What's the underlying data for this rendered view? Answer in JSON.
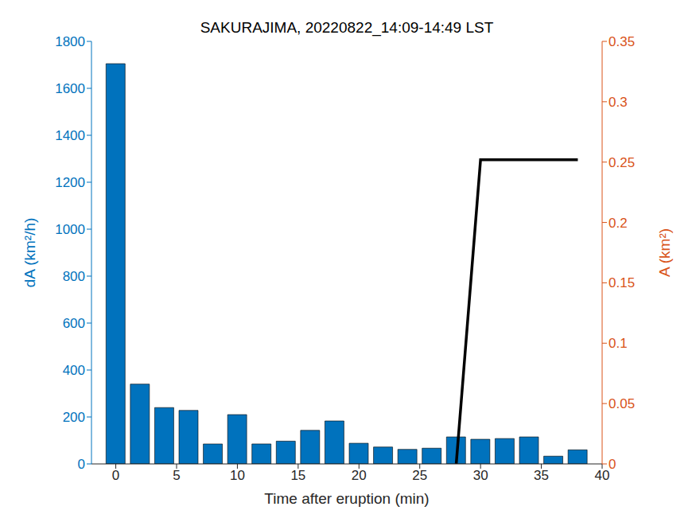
{
  "chart_data": {
    "type": "bar",
    "title": "SAKURAJIMA, 20220822_14:09-14:49 LST",
    "xlabel": "Time after eruption (min)",
    "ylabel": "dA (km²/h)",
    "y2label": "A (km²)",
    "xlim": [
      -2,
      40
    ],
    "xticks": [
      0,
      5,
      10,
      15,
      20,
      25,
      30,
      35,
      40
    ],
    "ylim": [
      0,
      1800
    ],
    "yticks": [
      0,
      200,
      400,
      600,
      800,
      1000,
      1200,
      1400,
      1600,
      1800
    ],
    "y2lim": [
      0,
      0.35
    ],
    "y2ticks": [
      0,
      0.05,
      0.1,
      0.15,
      0.2,
      0.25,
      0.3,
      0.35
    ],
    "grid": false,
    "series": [
      {
        "type": "bar",
        "color": "#0072bd",
        "x": [
          0,
          2,
          4,
          6,
          8,
          10,
          12,
          14,
          16,
          18,
          20,
          22,
          24,
          26,
          28,
          30,
          32,
          34,
          36,
          38
        ],
        "values": [
          1705,
          340,
          240,
          228,
          85,
          210,
          85,
          97,
          143,
          183,
          88,
          72,
          62,
          67,
          115,
          105,
          108,
          115,
          33,
          60
        ]
      },
      {
        "type": "line",
        "axis": "y2",
        "color": "#000000",
        "x": [
          28,
          30,
          32,
          34,
          36,
          38
        ],
        "values": [
          0,
          0.252,
          0.252,
          0.252,
          0.252,
          0.252
        ]
      }
    ]
  }
}
